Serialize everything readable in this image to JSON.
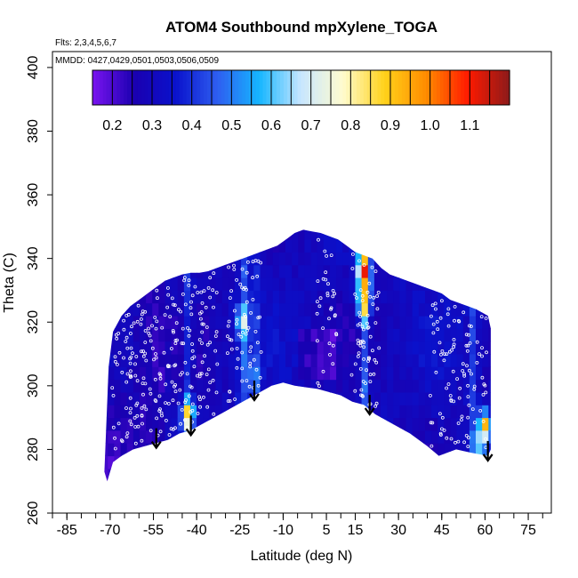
{
  "chart_data": {
    "type": "heatmap",
    "title": "ATOM4 Southbound mpXylene_TOGA",
    "xlabel": "Latitude (deg N)",
    "ylabel": "Theta (C)",
    "xlim": [
      -90,
      83
    ],
    "ylim": [
      260,
      405
    ],
    "x_ticks": [
      -85,
      -70,
      -55,
      -40,
      -25,
      -10,
      5,
      15,
      30,
      45,
      60,
      75
    ],
    "x_tick_labels": [
      "-85",
      "-70",
      "-55",
      "-40",
      "-25",
      "-10",
      "5",
      "15",
      "30",
      "45",
      "60",
      "75"
    ],
    "y_ticks": [
      260,
      280,
      300,
      320,
      340,
      360,
      380,
      400
    ],
    "y_tick_labels": [
      "260",
      "280",
      "300",
      "320",
      "340",
      "360",
      "380",
      "400"
    ],
    "annotations": {
      "flights": "Flts: 2,3,4,5,6,7",
      "dates": "MMDD: 0427,0429,0501,0503,0506,0509"
    },
    "colorbar": {
      "min": 0.15,
      "max": 1.2,
      "ticks": [
        0.2,
        0.3,
        0.4,
        0.5,
        0.6,
        0.7,
        0.8,
        0.9,
        1.0,
        1.1
      ],
      "tick_labels": [
        "0.2",
        "0.3",
        "0.4",
        "0.5",
        "0.6",
        "0.7",
        "0.8",
        "0.9",
        "1.0",
        "1.1"
      ],
      "colors": [
        "#7a14f0",
        "#1a00b0",
        "#0a12cc",
        "#2e5ef0",
        "#16b6ff",
        "#c8e6ff",
        "#fffccf",
        "#ffd21a",
        "#ff8c00",
        "#ff1a00",
        "#8c1a1a"
      ]
    },
    "arrow_latitudes": [
      -54,
      -42,
      -20,
      20,
      61
    ],
    "hotspots": [
      {
        "lat": 18,
        "theta": 337,
        "value": 0.95
      },
      {
        "lat": 18,
        "theta": 330,
        "value": 0.85
      },
      {
        "lat": 18,
        "theta": 325,
        "value": 0.7
      },
      {
        "lat": 60,
        "theta": 287,
        "value": 1.0
      },
      {
        "lat": 58,
        "theta": 282,
        "value": 0.65
      },
      {
        "lat": -43,
        "theta": 291,
        "value": 0.8
      },
      {
        "lat": -24,
        "theta": 320,
        "value": 0.6
      },
      {
        "lat": -20,
        "theta": 302,
        "value": 0.5
      }
    ]
  }
}
